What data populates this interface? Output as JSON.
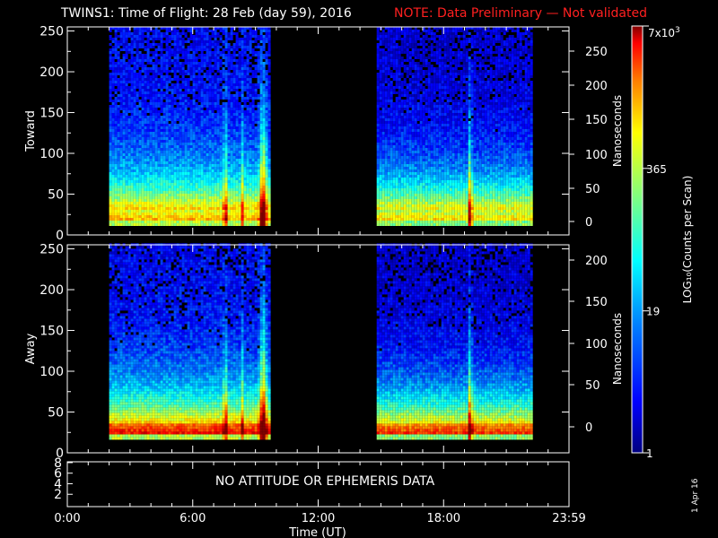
{
  "title": {
    "main": "TWINS1: Time of Flight: 28 Feb (day  59), 2016",
    "note": "NOTE: Data Preliminary — Not validated"
  },
  "colors": {
    "note": "#ff2020",
    "axes": "#ffffff",
    "background": "#000000"
  },
  "footer_stamp": "1 Apr 16",
  "chart_data": [
    {
      "type": "heatmap",
      "panel": "Toward",
      "ylabel": "Toward",
      "y_ticks": [
        "0",
        "50",
        "100",
        "150",
        "200",
        "250"
      ],
      "ylim": [
        0,
        255
      ],
      "right_axis_label": "Nanoseconds",
      "right_ticks": [
        "0",
        "50",
        "100",
        "150",
        "200",
        "250"
      ],
      "x_data_intervals_hours": [
        [
          2.0,
          9.7
        ],
        [
          14.8,
          22.2
        ]
      ],
      "dominant_counts_band_y": [
        15,
        60
      ]
    },
    {
      "type": "heatmap",
      "panel": "Away",
      "ylabel": "Away",
      "y_ticks": [
        "0",
        "50",
        "100",
        "150",
        "200",
        "250"
      ],
      "ylim": [
        0,
        255
      ],
      "right_axis_label": "Nanoseconds",
      "right_ticks": [
        "0",
        "50",
        "100",
        "150",
        "200"
      ],
      "x_data_intervals_hours": [
        [
          2.0,
          9.7
        ],
        [
          14.8,
          22.2
        ]
      ],
      "dominant_counts_band_y": [
        20,
        60
      ]
    },
    {
      "type": "line",
      "panel": "ephemeris",
      "y_ticks": [
        "2",
        "4",
        "6",
        "8"
      ],
      "message": "NO ATTITUDE OR EPHEMERIS DATA"
    }
  ],
  "x_axis": {
    "label": "Time (UT)",
    "ticks": [
      "0:00",
      "6:00",
      "12:00",
      "18:00",
      "23:59"
    ],
    "range_hours": [
      0,
      24
    ]
  },
  "colorbar": {
    "label": "LOG₁₀(Counts per Scan)",
    "scale": "log",
    "ticks": [
      "1",
      "19",
      "365",
      "7x10³"
    ],
    "max_label_base": "7x10",
    "max_label_exp": "3",
    "colors": [
      "#000080",
      "#0000ff",
      "#0080ff",
      "#00ffff",
      "#80ff80",
      "#ffff00",
      "#ff8000",
      "#ff0000",
      "#800000"
    ]
  }
}
